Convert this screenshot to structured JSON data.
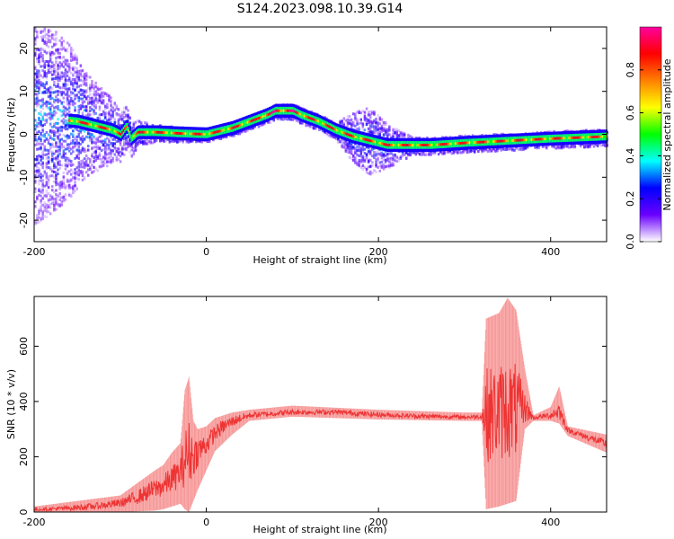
{
  "title": "S124.2023.098.10.39.G14",
  "chart_data": [
    {
      "type": "heatmap",
      "xlabel": "Height of straight line (km)",
      "ylabel": "Frequency (Hz)",
      "xlim": [
        -200,
        465
      ],
      "ylim": [
        -25,
        25
      ],
      "xticks": [
        -200,
        0,
        200,
        400
      ],
      "yticks": [
        -20,
        -10,
        0,
        10,
        20
      ],
      "colorbar": {
        "label": "Normalized spectral amplitude",
        "range": [
          0,
          1
        ],
        "ticks": [
          "0.0",
          "0.2",
          "0.4",
          "0.6",
          "0.8"
        ],
        "colormap": [
          "#ffffff",
          "#6a00ff",
          "#0000ff",
          "#00ffff",
          "#00ff00",
          "#ffff00",
          "#ff8000",
          "#ff0000",
          "#ff00a0"
        ]
      },
      "ridge_frequency_hz": {
        "x": [
          -200,
          -150,
          -130,
          -110,
          -100,
          -93,
          -88,
          -80,
          -60,
          -30,
          0,
          10,
          30,
          50,
          70,
          80,
          90,
          100,
          110,
          130,
          150,
          170,
          190,
          200,
          210,
          230,
          260,
          300,
          350,
          400,
          465
        ],
        "y": [
          4,
          3,
          2,
          1,
          0,
          2,
          -1,
          0.5,
          0.5,
          0.2,
          0,
          0.5,
          1.5,
          3,
          4.5,
          5.5,
          5.5,
          5.5,
          4.5,
          3,
          1,
          -0.5,
          -1.5,
          -2,
          -2.5,
          -2.5,
          -2.5,
          -2,
          -1.5,
          -1,
          -0.5
        ]
      },
      "noise_region_hz_spread": {
        "x": [
          -200,
          -160,
          -140,
          -120,
          -100,
          -80,
          -60,
          0,
          150,
          170,
          190,
          210,
          240,
          300,
          465
        ],
        "y": [
          25,
          18,
          12,
          9,
          6,
          3,
          2,
          1.5,
          2,
          6,
          8,
          5,
          2,
          2,
          2
        ]
      }
    },
    {
      "type": "line",
      "xlabel": "Height of straight line (km)",
      "ylabel": "SNR (10 * v/v)",
      "xlim": [
        -200,
        465
      ],
      "ylim": [
        0,
        780
      ],
      "xticks": [
        -200,
        0,
        200,
        400
      ],
      "yticks": [
        0,
        200,
        400,
        600
      ],
      "series": [
        {
          "color": "#ee3333",
          "x": [
            -200,
            -160,
            -130,
            -100,
            -80,
            -60,
            -50,
            -40,
            -30,
            -20,
            -15,
            -10,
            0,
            10,
            20,
            30,
            40,
            50,
            100,
            150,
            200,
            250,
            300,
            320,
            325,
            340,
            360,
            370,
            380,
            390,
            400,
            410,
            420,
            440,
            465
          ],
          "y": [
            8,
            10,
            18,
            35,
            55,
            90,
            100,
            120,
            150,
            180,
            220,
            250,
            260,
            290,
            320,
            335,
            345,
            350,
            358,
            365,
            352,
            345,
            342,
            345,
            350,
            350,
            350,
            345,
            340,
            345,
            345,
            348,
            300,
            275,
            245
          ],
          "envelope": {
            "x": [
              -200,
              -100,
              -60,
              -50,
              -40,
              -30,
              -25,
              -20,
              -15,
              -10,
              0,
              10,
              30,
              50,
              100,
              200,
              300,
              320,
              325,
              340,
              350,
              360,
              370,
              380,
              400,
              410,
              420,
              465
            ],
            "lo": [
              0,
              0,
              5,
              10,
              20,
              30,
              10,
              0,
              40,
              80,
              150,
              220,
              280,
              330,
              345,
              335,
              330,
              330,
              10,
              20,
              30,
              40,
              300,
              330,
              330,
              320,
              275,
              215
            ],
            "hi": [
              20,
              60,
              150,
              170,
              215,
              250,
              440,
              490,
              330,
              300,
              310,
              340,
              360,
              370,
              385,
              370,
              360,
              360,
              700,
              720,
              775,
              730,
              520,
              350,
              380,
              455,
              310,
              280
            ]
          }
        }
      ]
    }
  ]
}
